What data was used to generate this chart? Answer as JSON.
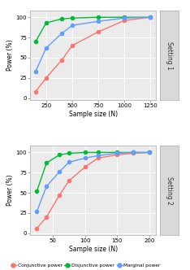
{
  "setting1": {
    "x": [
      150,
      250,
      400,
      500,
      750,
      1000,
      1250
    ],
    "conjunctive": [
      8,
      25,
      47,
      65,
      82,
      96,
      100
    ],
    "disjunctive": [
      70,
      93,
      98,
      99,
      100,
      100,
      100
    ],
    "marginal": [
      33,
      62,
      80,
      90,
      95,
      99,
      100
    ],
    "xlim": [
      100,
      1300
    ],
    "xticks": [
      250,
      500,
      750,
      1000,
      1250
    ],
    "xlabel": "Sample size (N)",
    "ylabel": "Power (%)",
    "label": "Setting 1",
    "ylim": [
      -2,
      108
    ],
    "yticks": [
      0,
      25,
      50,
      75,
      100
    ]
  },
  "setting2": {
    "x": [
      25,
      40,
      60,
      75,
      100,
      120,
      150,
      175,
      200
    ],
    "conjunctive": [
      6,
      20,
      47,
      65,
      82,
      93,
      97,
      99,
      100
    ],
    "disjunctive": [
      52,
      87,
      97,
      99,
      100,
      100,
      100,
      100,
      100
    ],
    "marginal": [
      27,
      58,
      76,
      88,
      93,
      96,
      99,
      100,
      100
    ],
    "xlim": [
      15,
      210
    ],
    "xticks": [
      50,
      100,
      150,
      200
    ],
    "xlabel": "Sample size (N)",
    "ylabel": "Power (%)",
    "label": "Setting 2",
    "ylim": [
      -2,
      108
    ],
    "yticks": [
      0,
      25,
      50,
      75,
      100
    ]
  },
  "colors": {
    "conjunctive": "#F8766D",
    "disjunctive": "#00BA38",
    "marginal": "#619CFF"
  },
  "legend": {
    "conjunctive": "Conjunctive power",
    "disjunctive": "Disjunctive power",
    "marginal": "Marginal power"
  },
  "background_panel": "#EBEBEB",
  "background_strip": "#D9D9D9",
  "grid_color": "#FFFFFF",
  "marker": "o",
  "markersize": 3.0,
  "linewidth": 1.0
}
